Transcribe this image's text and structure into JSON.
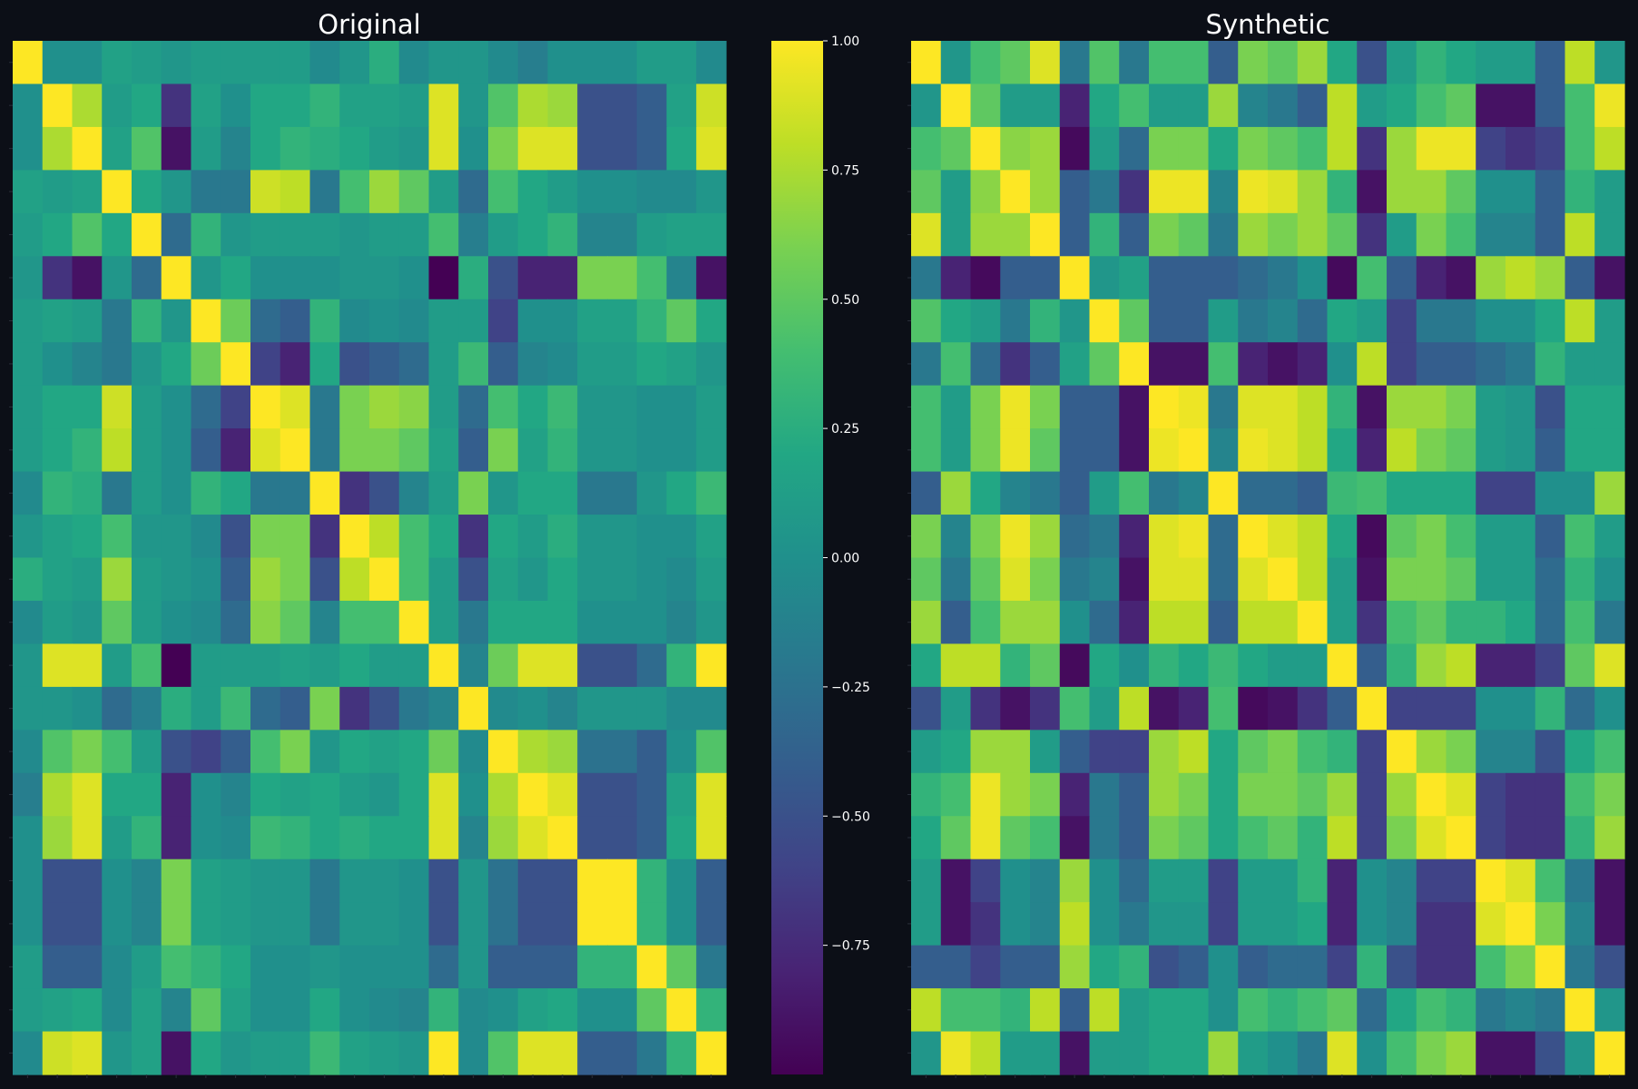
{
  "figure": {
    "background": "#0c0f17",
    "text_color": "#ffffff",
    "colormap": "viridis"
  },
  "chart_data": [
    {
      "type": "heatmap",
      "title": "Original",
      "xlabel": "",
      "ylabel": "",
      "x_tick_labels": [],
      "y_tick_labels": [],
      "vlim": [
        -1,
        1
      ],
      "values": [
        [
          1.0,
          0.0,
          0.0,
          0.15,
          0.1,
          0.05,
          0.1,
          0.1,
          0.1,
          0.1,
          -0.05,
          0.05,
          0.25,
          -0.05,
          0.05,
          0.05,
          -0.05,
          -0.15,
          0.0,
          0.0,
          0.0,
          0.1,
          0.1,
          -0.05
        ],
        [
          0.0,
          1.0,
          0.75,
          0.1,
          0.2,
          -0.7,
          0.15,
          0.0,
          0.2,
          0.2,
          0.3,
          0.15,
          0.15,
          0.1,
          0.9,
          0.05,
          0.45,
          0.75,
          0.7,
          -0.5,
          -0.5,
          -0.4,
          0.15,
          0.85
        ],
        [
          0.0,
          0.75,
          1.0,
          0.15,
          0.45,
          -0.9,
          0.1,
          -0.1,
          0.2,
          0.3,
          0.25,
          0.2,
          0.1,
          0.05,
          0.9,
          0.0,
          0.6,
          0.9,
          0.9,
          -0.5,
          -0.5,
          -0.4,
          0.2,
          0.9
        ],
        [
          0.15,
          0.1,
          0.15,
          1.0,
          0.2,
          0.05,
          -0.2,
          -0.2,
          0.85,
          0.8,
          -0.2,
          0.4,
          0.7,
          0.5,
          0.1,
          -0.3,
          0.4,
          0.2,
          0.1,
          0.0,
          0.0,
          -0.05,
          -0.05,
          0.05
        ],
        [
          0.1,
          0.2,
          0.45,
          0.2,
          1.0,
          -0.3,
          0.3,
          0.05,
          0.1,
          0.1,
          0.1,
          0.05,
          0.1,
          0.1,
          0.4,
          -0.15,
          0.1,
          0.2,
          0.3,
          -0.1,
          -0.1,
          0.1,
          0.15,
          0.15
        ],
        [
          0.05,
          -0.7,
          -0.9,
          0.05,
          -0.3,
          1.0,
          0.05,
          0.2,
          0.0,
          0.0,
          0.0,
          0.05,
          0.05,
          0.0,
          -1.0,
          0.25,
          -0.5,
          -0.8,
          -0.8,
          0.6,
          0.6,
          0.4,
          -0.1,
          -0.9
        ],
        [
          0.1,
          0.15,
          0.1,
          -0.2,
          0.3,
          0.05,
          1.0,
          0.55,
          -0.3,
          -0.4,
          0.3,
          -0.05,
          0.0,
          -0.05,
          0.1,
          0.1,
          -0.6,
          0.0,
          0.0,
          0.15,
          0.15,
          0.3,
          0.5,
          0.2
        ],
        [
          0.1,
          0.0,
          -0.1,
          -0.2,
          0.05,
          0.2,
          0.55,
          1.0,
          -0.6,
          -0.8,
          0.2,
          -0.5,
          -0.4,
          -0.3,
          0.1,
          0.35,
          -0.4,
          -0.1,
          -0.05,
          0.1,
          0.1,
          0.2,
          0.15,
          0.05
        ],
        [
          0.1,
          0.2,
          0.2,
          0.85,
          0.1,
          0.0,
          -0.3,
          -0.6,
          1.0,
          0.9,
          -0.2,
          0.6,
          0.7,
          0.65,
          0.1,
          -0.3,
          0.4,
          0.2,
          0.35,
          0.05,
          0.05,
          0.0,
          0.0,
          0.1
        ],
        [
          0.1,
          0.2,
          0.3,
          0.8,
          0.1,
          0.0,
          -0.4,
          -0.8,
          0.9,
          1.0,
          -0.2,
          0.6,
          0.6,
          0.5,
          0.15,
          -0.4,
          0.6,
          0.15,
          0.3,
          0.05,
          0.05,
          0.0,
          0.0,
          0.1
        ],
        [
          -0.05,
          0.3,
          0.25,
          -0.2,
          0.1,
          0.0,
          0.3,
          0.2,
          -0.2,
          -0.2,
          1.0,
          -0.7,
          -0.5,
          -0.1,
          0.1,
          0.6,
          0.05,
          0.2,
          0.2,
          -0.2,
          -0.2,
          0.05,
          0.2,
          0.35
        ],
        [
          0.05,
          0.15,
          0.2,
          0.4,
          0.05,
          0.05,
          -0.05,
          -0.5,
          0.6,
          0.6,
          -0.7,
          1.0,
          0.8,
          0.4,
          0.2,
          -0.7,
          0.2,
          0.1,
          0.25,
          0.05,
          0.05,
          0.0,
          0.0,
          0.15
        ],
        [
          0.25,
          0.15,
          0.1,
          0.7,
          0.1,
          0.05,
          0.0,
          -0.4,
          0.7,
          0.6,
          -0.5,
          0.8,
          1.0,
          0.4,
          0.1,
          -0.5,
          0.15,
          0.05,
          0.2,
          0.05,
          0.05,
          0.0,
          -0.05,
          0.1
        ],
        [
          -0.05,
          0.1,
          0.05,
          0.5,
          0.1,
          0.0,
          -0.05,
          -0.3,
          0.65,
          0.5,
          -0.1,
          0.4,
          0.4,
          1.0,
          0.1,
          -0.2,
          0.2,
          0.2,
          0.2,
          0.0,
          0.0,
          0.0,
          -0.1,
          0.05
        ],
        [
          0.05,
          0.9,
          0.9,
          0.1,
          0.4,
          -1.0,
          0.1,
          0.1,
          0.1,
          0.15,
          0.1,
          0.2,
          0.1,
          0.1,
          1.0,
          -0.1,
          0.55,
          0.9,
          0.9,
          -0.5,
          -0.5,
          -0.3,
          0.3,
          1.0
        ],
        [
          0.05,
          0.05,
          0.0,
          -0.3,
          -0.15,
          0.25,
          0.1,
          0.35,
          -0.3,
          -0.4,
          0.6,
          -0.7,
          -0.5,
          -0.2,
          -0.1,
          1.0,
          -0.05,
          0.0,
          -0.1,
          0.05,
          0.05,
          0.05,
          -0.05,
          -0.05
        ],
        [
          -0.05,
          0.45,
          0.6,
          0.4,
          0.1,
          -0.5,
          -0.6,
          -0.4,
          0.4,
          0.6,
          0.05,
          0.2,
          0.15,
          0.2,
          0.55,
          -0.05,
          1.0,
          0.75,
          0.7,
          -0.25,
          -0.25,
          -0.4,
          0.0,
          0.45
        ],
        [
          -0.15,
          0.75,
          0.9,
          0.2,
          0.2,
          -0.8,
          0.0,
          -0.1,
          0.2,
          0.15,
          0.2,
          0.1,
          0.05,
          0.2,
          0.9,
          0.0,
          0.75,
          1.0,
          0.9,
          -0.5,
          -0.5,
          -0.4,
          0.15,
          0.9
        ],
        [
          0.0,
          0.7,
          0.9,
          0.1,
          0.3,
          -0.8,
          0.0,
          -0.05,
          0.35,
          0.3,
          0.2,
          0.25,
          0.2,
          0.2,
          0.9,
          -0.1,
          0.7,
          0.9,
          1.0,
          -0.5,
          -0.5,
          -0.4,
          0.2,
          0.9
        ],
        [
          0.0,
          -0.5,
          -0.5,
          0.0,
          -0.1,
          0.6,
          0.15,
          0.1,
          0.05,
          0.05,
          -0.2,
          0.05,
          0.05,
          0.0,
          -0.5,
          0.05,
          -0.25,
          -0.5,
          -0.5,
          1.0,
          1.0,
          0.3,
          0.0,
          -0.4
        ],
        [
          0.0,
          -0.5,
          -0.5,
          0.0,
          -0.1,
          0.6,
          0.15,
          0.1,
          0.05,
          0.05,
          -0.2,
          0.05,
          0.05,
          0.0,
          -0.5,
          0.05,
          -0.25,
          -0.5,
          -0.5,
          1.0,
          1.0,
          0.3,
          0.0,
          -0.4
        ],
        [
          0.1,
          -0.4,
          -0.4,
          -0.05,
          0.1,
          0.4,
          0.3,
          0.2,
          0.0,
          0.0,
          0.05,
          0.0,
          0.0,
          0.0,
          -0.3,
          0.05,
          -0.4,
          -0.4,
          -0.4,
          0.3,
          0.3,
          1.0,
          0.5,
          -0.2
        ],
        [
          0.1,
          0.15,
          0.2,
          -0.05,
          0.15,
          -0.1,
          0.5,
          0.15,
          0.0,
          0.0,
          0.2,
          0.0,
          -0.05,
          -0.1,
          0.3,
          -0.05,
          0.0,
          0.15,
          0.2,
          0.0,
          0.0,
          0.5,
          1.0,
          0.3
        ],
        [
          -0.05,
          0.85,
          0.9,
          0.05,
          0.15,
          -0.9,
          0.2,
          0.05,
          0.1,
          0.1,
          0.35,
          0.15,
          0.1,
          0.05,
          1.0,
          -0.05,
          0.45,
          0.9,
          0.9,
          -0.4,
          -0.4,
          -0.2,
          0.3,
          1.0
        ]
      ]
    },
    {
      "type": "heatmap",
      "title": "Synthetic",
      "xlabel": "",
      "ylabel": "",
      "x_tick_labels": [],
      "y_tick_labels": [],
      "vlim": [
        -1,
        1
      ],
      "values": [
        [
          1.0,
          0.05,
          0.4,
          0.5,
          0.9,
          -0.2,
          0.45,
          -0.2,
          0.4,
          0.4,
          -0.4,
          0.6,
          0.5,
          0.7,
          0.2,
          -0.5,
          0.1,
          0.3,
          0.2,
          0.1,
          0.1,
          -0.4,
          0.8,
          0.05
        ],
        [
          0.05,
          1.0,
          0.5,
          0.1,
          0.1,
          -0.8,
          0.2,
          0.4,
          0.1,
          0.1,
          0.7,
          -0.1,
          -0.2,
          -0.4,
          0.8,
          0.1,
          0.2,
          0.4,
          0.5,
          -0.9,
          -0.9,
          -0.4,
          0.4,
          0.95
        ],
        [
          0.4,
          0.5,
          1.0,
          0.65,
          0.7,
          -0.95,
          0.1,
          -0.3,
          0.6,
          0.6,
          0.2,
          0.6,
          0.5,
          0.4,
          0.8,
          -0.7,
          0.7,
          0.95,
          0.95,
          -0.6,
          -0.7,
          -0.6,
          0.4,
          0.8
        ],
        [
          0.5,
          0.1,
          0.65,
          1.0,
          0.7,
          -0.4,
          -0.2,
          -0.7,
          0.95,
          0.95,
          -0.1,
          0.95,
          0.9,
          0.7,
          0.3,
          -0.9,
          0.7,
          0.7,
          0.5,
          0.0,
          0.0,
          -0.4,
          0.3,
          0.1
        ],
        [
          0.9,
          0.1,
          0.7,
          0.7,
          1.0,
          -0.4,
          0.3,
          -0.4,
          0.6,
          0.5,
          -0.2,
          0.7,
          0.6,
          0.7,
          0.5,
          -0.7,
          0.1,
          0.6,
          0.4,
          -0.1,
          -0.1,
          -0.4,
          0.8,
          0.1
        ],
        [
          -0.2,
          -0.8,
          -0.95,
          -0.4,
          -0.4,
          1.0,
          0.05,
          0.15,
          -0.4,
          -0.4,
          -0.4,
          -0.3,
          -0.2,
          0.0,
          -0.95,
          0.4,
          -0.4,
          -0.8,
          -0.9,
          0.7,
          0.8,
          0.7,
          -0.4,
          -0.9
        ],
        [
          0.45,
          0.2,
          0.1,
          -0.2,
          0.3,
          0.05,
          1.0,
          0.5,
          -0.4,
          -0.4,
          0.1,
          -0.2,
          -0.1,
          -0.3,
          0.2,
          0.1,
          -0.6,
          -0.2,
          -0.2,
          0.0,
          0.0,
          0.2,
          0.8,
          0.1
        ],
        [
          -0.2,
          0.4,
          -0.3,
          -0.7,
          -0.4,
          0.15,
          0.5,
          1.0,
          -0.9,
          -0.9,
          0.4,
          -0.8,
          -0.9,
          -0.8,
          0.0,
          0.8,
          -0.6,
          -0.4,
          -0.4,
          -0.3,
          -0.2,
          0.3,
          0.1,
          0.1
        ],
        [
          0.4,
          0.1,
          0.6,
          0.95,
          0.6,
          -0.4,
          -0.4,
          -0.9,
          1.0,
          0.95,
          -0.2,
          0.9,
          0.9,
          0.8,
          0.3,
          -0.9,
          0.7,
          0.7,
          0.6,
          0.1,
          0.05,
          -0.5,
          0.2,
          0.2
        ],
        [
          0.4,
          0.1,
          0.6,
          0.95,
          0.5,
          -0.4,
          -0.4,
          -0.9,
          0.95,
          1.0,
          -0.1,
          0.95,
          0.9,
          0.8,
          0.2,
          -0.8,
          0.8,
          0.6,
          0.5,
          0.1,
          0.05,
          -0.4,
          0.2,
          0.2
        ],
        [
          -0.4,
          0.7,
          0.2,
          -0.1,
          -0.2,
          -0.4,
          0.1,
          0.4,
          -0.2,
          -0.1,
          1.0,
          -0.3,
          -0.3,
          -0.4,
          0.35,
          0.4,
          0.2,
          0.2,
          0.2,
          -0.6,
          -0.6,
          0.0,
          0.0,
          0.7
        ],
        [
          0.6,
          -0.1,
          0.6,
          0.95,
          0.7,
          -0.3,
          -0.2,
          -0.8,
          0.9,
          0.95,
          -0.3,
          1.0,
          0.9,
          0.8,
          0.2,
          -0.95,
          0.5,
          0.6,
          0.4,
          0.1,
          0.1,
          -0.4,
          0.4,
          0.1
        ],
        [
          0.5,
          -0.2,
          0.5,
          0.9,
          0.6,
          -0.2,
          -0.1,
          -0.9,
          0.9,
          0.9,
          -0.3,
          0.9,
          1.0,
          0.8,
          0.1,
          -0.9,
          0.6,
          0.6,
          0.5,
          0.1,
          0.1,
          -0.3,
          0.3,
          0.0
        ],
        [
          0.7,
          -0.4,
          0.4,
          0.7,
          0.7,
          0.0,
          -0.3,
          -0.8,
          0.8,
          0.8,
          -0.4,
          0.8,
          0.8,
          1.0,
          0.1,
          -0.7,
          0.4,
          0.5,
          0.3,
          0.3,
          0.2,
          -0.3,
          0.4,
          -0.2
        ],
        [
          0.2,
          0.8,
          0.8,
          0.3,
          0.5,
          -0.95,
          0.2,
          0.0,
          0.3,
          0.2,
          0.35,
          0.2,
          0.1,
          0.1,
          1.0,
          -0.4,
          0.3,
          0.7,
          0.8,
          -0.8,
          -0.8,
          -0.6,
          0.5,
          0.9
        ],
        [
          -0.5,
          0.1,
          -0.7,
          -0.9,
          -0.7,
          0.4,
          0.1,
          0.8,
          -0.9,
          -0.8,
          0.4,
          -0.95,
          -0.9,
          -0.7,
          -0.4,
          1.0,
          -0.6,
          -0.6,
          -0.6,
          0.0,
          0.0,
          0.3,
          -0.3,
          0.0
        ],
        [
          0.1,
          0.2,
          0.7,
          0.7,
          0.1,
          -0.4,
          -0.6,
          -0.6,
          0.7,
          0.8,
          0.2,
          0.5,
          0.6,
          0.4,
          0.3,
          -0.6,
          1.0,
          0.7,
          0.6,
          -0.1,
          -0.1,
          -0.5,
          0.2,
          0.4
        ],
        [
          0.3,
          0.4,
          0.95,
          0.7,
          0.6,
          -0.8,
          -0.2,
          -0.4,
          0.7,
          0.6,
          0.2,
          0.6,
          0.6,
          0.5,
          0.7,
          -0.6,
          0.7,
          1.0,
          0.9,
          -0.6,
          -0.7,
          -0.7,
          0.4,
          0.6
        ],
        [
          0.2,
          0.5,
          0.95,
          0.5,
          0.4,
          -0.9,
          -0.2,
          -0.4,
          0.6,
          0.5,
          0.2,
          0.4,
          0.5,
          0.3,
          0.8,
          -0.6,
          0.6,
          0.9,
          1.0,
          -0.6,
          -0.7,
          -0.7,
          0.3,
          0.7
        ],
        [
          0.1,
          -0.9,
          -0.6,
          0.0,
          -0.1,
          0.7,
          0.0,
          -0.3,
          0.1,
          0.1,
          -0.6,
          0.1,
          0.1,
          0.3,
          -0.8,
          0.0,
          -0.1,
          -0.6,
          -0.6,
          1.0,
          0.9,
          0.4,
          -0.2,
          -0.9
        ],
        [
          0.1,
          -0.9,
          -0.7,
          0.0,
          -0.1,
          0.8,
          0.0,
          -0.2,
          0.05,
          0.05,
          -0.6,
          0.1,
          0.1,
          0.2,
          -0.8,
          0.0,
          -0.1,
          -0.7,
          -0.7,
          0.9,
          1.0,
          0.6,
          -0.1,
          -0.9
        ],
        [
          -0.4,
          -0.4,
          -0.6,
          -0.4,
          -0.4,
          0.7,
          0.2,
          0.3,
          -0.5,
          -0.4,
          0.0,
          -0.4,
          -0.3,
          -0.3,
          -0.6,
          0.3,
          -0.5,
          -0.7,
          -0.7,
          0.4,
          0.6,
          1.0,
          -0.2,
          -0.5
        ],
        [
          0.8,
          0.4,
          0.4,
          0.3,
          0.8,
          -0.4,
          0.8,
          0.1,
          0.2,
          0.2,
          0.0,
          0.4,
          0.3,
          0.4,
          0.5,
          -0.3,
          0.2,
          0.4,
          0.3,
          -0.2,
          -0.1,
          -0.2,
          1.0,
          0.05
        ],
        [
          0.05,
          0.95,
          0.8,
          0.1,
          0.1,
          -0.9,
          0.1,
          0.1,
          0.2,
          0.2,
          0.7,
          0.1,
          0.0,
          -0.2,
          0.9,
          0.0,
          0.4,
          0.6,
          0.7,
          -0.9,
          -0.9,
          -0.5,
          0.05,
          1.0
        ]
      ]
    }
  ],
  "colorbar": {
    "vlim": [
      -1,
      1
    ],
    "ticks": [
      {
        "value": 1.0,
        "label": "1.00"
      },
      {
        "value": 0.75,
        "label": "0.75"
      },
      {
        "value": 0.5,
        "label": "0.50"
      },
      {
        "value": 0.25,
        "label": "0.25"
      },
      {
        "value": 0.0,
        "label": "0.00"
      },
      {
        "value": -0.25,
        "label": "−0.25"
      },
      {
        "value": -0.5,
        "label": "−0.50"
      },
      {
        "value": -0.75,
        "label": "−0.75"
      }
    ]
  }
}
